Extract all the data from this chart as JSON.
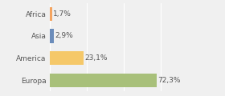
{
  "categories": [
    "Europa",
    "America",
    "Asia",
    "Africa"
  ],
  "values": [
    72.3,
    23.1,
    2.9,
    1.7
  ],
  "bar_colors": [
    "#a8c07a",
    "#f5c869",
    "#6b8cba",
    "#f4a460"
  ],
  "labels": [
    "72,3%",
    "23,1%",
    "2,9%",
    "1,7%"
  ],
  "xlim": [
    0,
    100
  ],
  "background_color": "#f0f0f0",
  "plot_bg_color": "#f0f0f0",
  "label_fontsize": 6.5,
  "category_fontsize": 6.5,
  "bar_height": 0.62,
  "grid_color": "#ffffff",
  "grid_positions": [
    0,
    25,
    50,
    75,
    100
  ],
  "label_color": "#555555",
  "tick_color": "#555555"
}
